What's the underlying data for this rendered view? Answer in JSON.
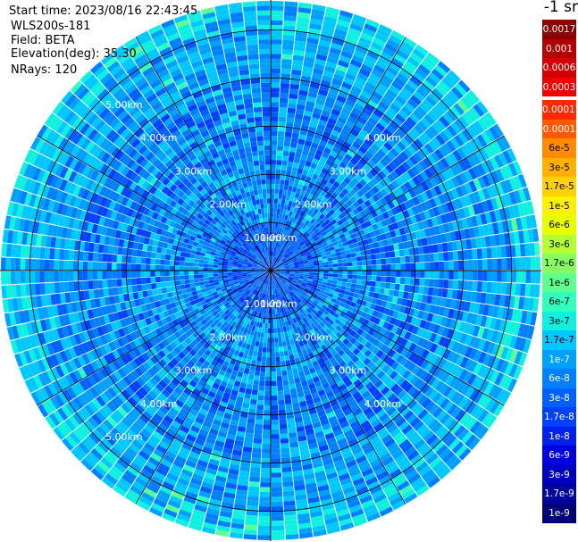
{
  "header": {
    "start_time": "Start time: 2023/08/16 22:43:45",
    "site": "WLS200s-181",
    "field": "Field: BETA",
    "elevation": "Elevation(deg): 35.30",
    "nrays": "NRays: 120"
  },
  "colorbar": {
    "title": "-1 sr",
    "labels": [
      "0.0017",
      "0.001",
      "0.0006",
      "0.0003",
      "0.00017",
      "0.0001",
      "6e-5",
      "3e-5",
      "1.7e-5",
      "1e-5",
      "6e-6",
      "3e-6",
      "1.7e-6",
      "1e-6",
      "6e-7",
      "3e-7",
      "1.7e-7",
      "1e-7",
      "6e-8",
      "3e-8",
      "1.7e-8",
      "1e-8",
      "6e-9",
      "3e-9",
      "1.7e-9",
      "1e-9"
    ],
    "colors": [
      "#8b0000",
      "#b30000",
      "#d40000",
      "#f00000",
      "#ff2a00",
      "#ff5a00",
      "#ff8c00",
      "#ffb000",
      "#ffd200",
      "#fff200",
      "#e8ff00",
      "#b6ff30",
      "#88ff60",
      "#5cff90",
      "#30ffc0",
      "#10f0e0",
      "#00c8ff",
      "#00a0ff",
      "#0080ff",
      "#0060ff",
      "#0040ff",
      "#0020f0",
      "#0000e0",
      "#0000c0",
      "#00009c",
      "#000078"
    ]
  },
  "chart_data": {
    "type": "heatmap",
    "projection": "polar PPI",
    "field": "BETA",
    "units": "sr-1",
    "elevation_deg": 35.3,
    "n_rays": 120,
    "range_rings_km": [
      1,
      2,
      3,
      4,
      5
    ],
    "ring_labels": [
      "1.00km",
      "2.00km",
      "3.00km",
      "4.00km",
      "5.00km"
    ],
    "max_range_km": 5.6,
    "radial_lines_deg": [
      0,
      30,
      60,
      90,
      120,
      150,
      180,
      210,
      240,
      270,
      300,
      330
    ],
    "dominant_range": "1e-8 to 3e-7",
    "typical_value_by_range_km": [
      {
        "range_km": 0.5,
        "beta": 3e-08
      },
      {
        "range_km": 1.5,
        "beta": 6e-08
      },
      {
        "range_km": 2.5,
        "beta": 6e-08
      },
      {
        "range_km": 3.5,
        "beta": 6e-08
      },
      {
        "range_km": 4.5,
        "beta": 1e-07
      },
      {
        "range_km": 5.5,
        "beta": 1.7e-07
      }
    ]
  }
}
